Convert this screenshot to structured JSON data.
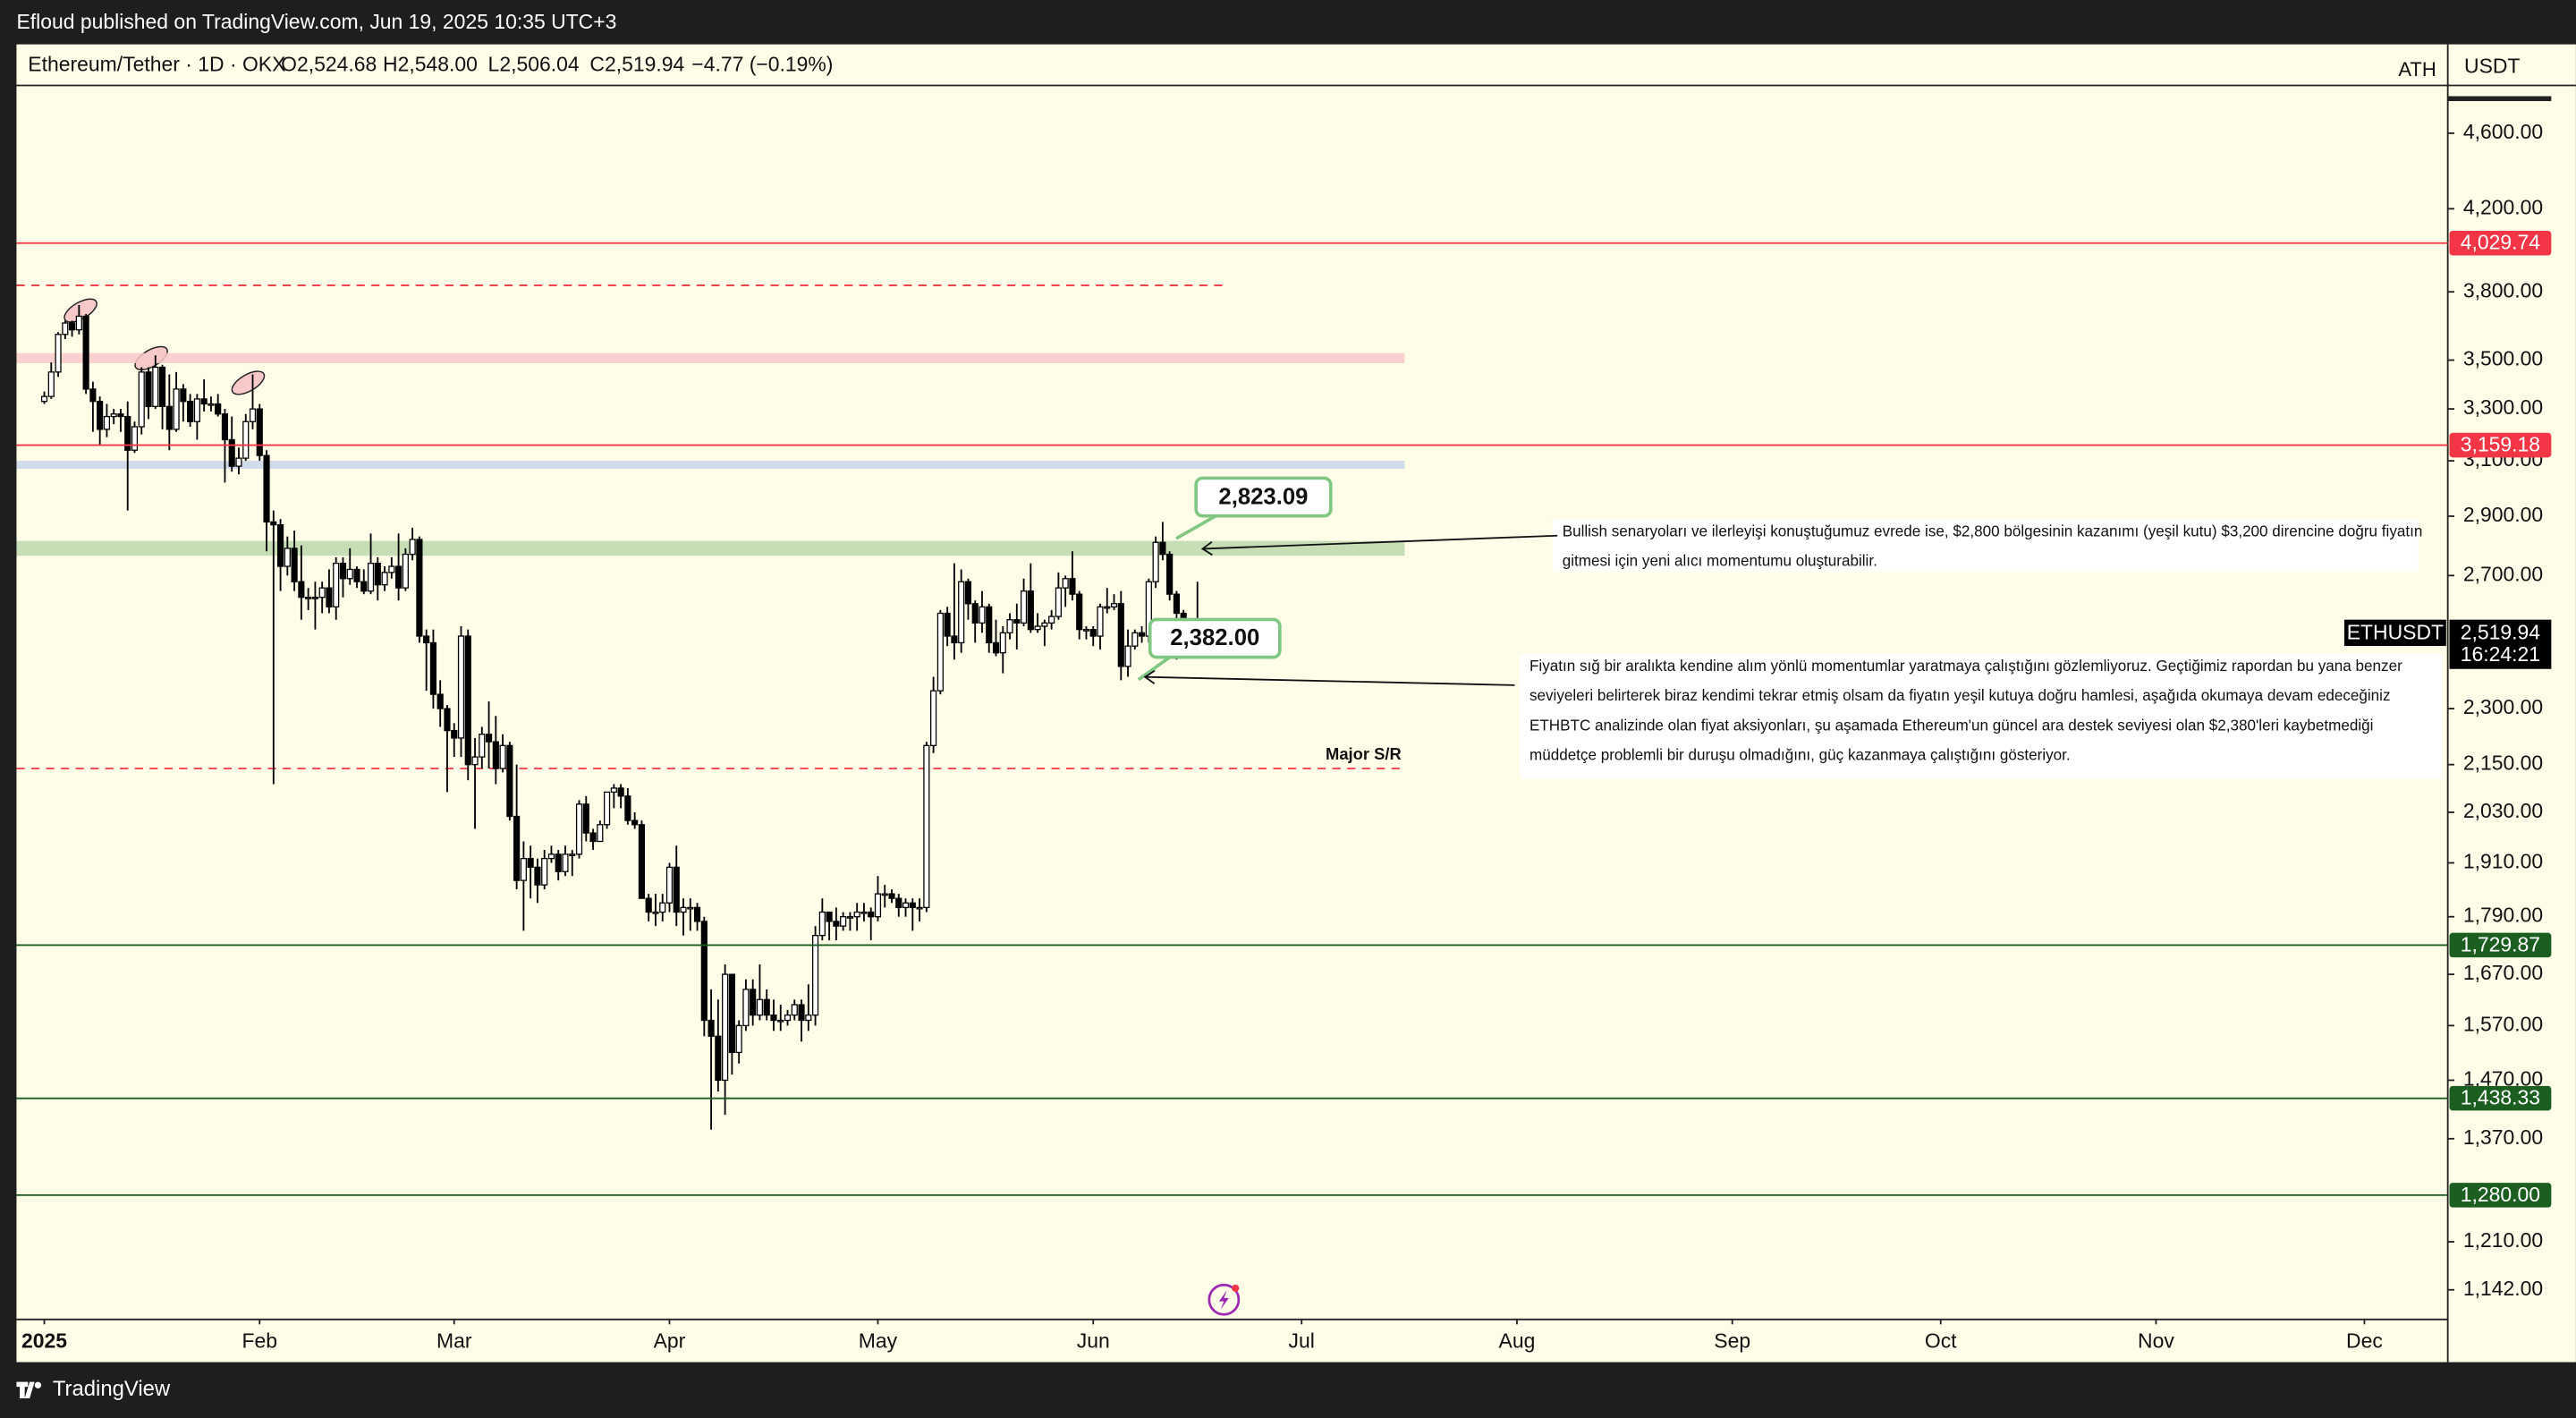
{
  "header": {
    "publisher_line": "Efloud published on TradingView.com, Jun 19, 2025 10:35 UTC+3"
  },
  "footer": {
    "brand": "TradingView"
  },
  "chart_data": {
    "type": "candlestick",
    "symbol_line": "Ethereum/Tether · 1D · OKX",
    "ohlc_labels": [
      "O2,524.68",
      "H2,548.00",
      "L2,506.04",
      "C2,519.94"
    ],
    "change_label": "−4.77 (−0.19%)",
    "ath_label": "ATH",
    "currency_label": "USDT",
    "yscale": "log",
    "ylim": [
      1102,
      4863
    ],
    "yticks": [
      {
        "value": 4600,
        "label": "4,600.00"
      },
      {
        "value": 4200,
        "label": "4,200.00"
      },
      {
        "value": 3800,
        "label": "3,800.00"
      },
      {
        "value": 3500,
        "label": "3,500.00"
      },
      {
        "value": 3300,
        "label": "3,300.00"
      },
      {
        "value": 3100,
        "label": "3,100.00"
      },
      {
        "value": 2900,
        "label": "2,900.00"
      },
      {
        "value": 2700,
        "label": "2,700.00"
      },
      {
        "value": 2300,
        "label": "2,300.00"
      },
      {
        "value": 2150,
        "label": "2,150.00"
      },
      {
        "value": 2030,
        "label": "2,030.00"
      },
      {
        "value": 1910,
        "label": "1,910.00"
      },
      {
        "value": 1790,
        "label": "1,790.00"
      },
      {
        "value": 1670,
        "label": "1,670.00"
      },
      {
        "value": 1570,
        "label": "1,570.00"
      },
      {
        "value": 1470,
        "label": "1,470.00"
      },
      {
        "value": 1370,
        "label": "1,370.00"
      },
      {
        "value": 1210,
        "label": "1,210.00"
      },
      {
        "value": 1142,
        "label": "1,142.00"
      }
    ],
    "xlim": [
      -4,
      346
    ],
    "xticks": [
      {
        "value": 0,
        "label": "2025"
      },
      {
        "value": 31,
        "label": "Feb"
      },
      {
        "value": 59,
        "label": "Mar"
      },
      {
        "value": 90,
        "label": "Apr"
      },
      {
        "value": 120,
        "label": "May"
      },
      {
        "value": 151,
        "label": "Jun"
      },
      {
        "value": 181,
        "label": "Jul"
      },
      {
        "value": 212,
        "label": "Aug"
      },
      {
        "value": 243,
        "label": "Sep"
      },
      {
        "value": 273,
        "label": "Oct"
      },
      {
        "value": 304,
        "label": "Nov"
      },
      {
        "value": 334,
        "label": "Dec"
      }
    ],
    "up_color": "#ffffff",
    "down_color": "#000000",
    "candles": [
      [
        3330,
        3370,
        3320,
        3350
      ],
      [
        3350,
        3490,
        3340,
        3450
      ],
      [
        3450,
        3620,
        3430,
        3610
      ],
      [
        3610,
        3670,
        3590,
        3660
      ],
      [
        3660,
        3670,
        3600,
        3630
      ],
      [
        3630,
        3740,
        3610,
        3690
      ],
      [
        3690,
        3700,
        3360,
        3380
      ],
      [
        3380,
        3410,
        3210,
        3330
      ],
      [
        3330,
        3350,
        3160,
        3220
      ],
      [
        3220,
        3320,
        3190,
        3270
      ],
      [
        3270,
        3300,
        3240,
        3280
      ],
      [
        3280,
        3300,
        3210,
        3270
      ],
      [
        3270,
        3330,
        2920,
        3140
      ],
      [
        3140,
        3250,
        3130,
        3230
      ],
      [
        3230,
        3470,
        3200,
        3450
      ],
      [
        3450,
        3470,
        3260,
        3310
      ],
      [
        3310,
        3520,
        3300,
        3470
      ],
      [
        3470,
        3480,
        3220,
        3310
      ],
      [
        3310,
        3440,
        3140,
        3220
      ],
      [
        3220,
        3450,
        3210,
        3380
      ],
      [
        3380,
        3400,
        3250,
        3330
      ],
      [
        3330,
        3360,
        3230,
        3250
      ],
      [
        3250,
        3360,
        3180,
        3340
      ],
      [
        3340,
        3420,
        3290,
        3320
      ],
      [
        3320,
        3350,
        3290,
        3320
      ],
      [
        3320,
        3360,
        3270,
        3280
      ],
      [
        3280,
        3300,
        3020,
        3180
      ],
      [
        3180,
        3270,
        3060,
        3080
      ],
      [
        3080,
        3150,
        3050,
        3110
      ],
      [
        3110,
        3280,
        3100,
        3250
      ],
      [
        3250,
        3440,
        3220,
        3300
      ],
      [
        3300,
        3320,
        3100,
        3120
      ],
      [
        3120,
        3140,
        2780,
        2880
      ],
      [
        2880,
        2920,
        2100,
        2870
      ],
      [
        2870,
        2890,
        2650,
        2730
      ],
      [
        2730,
        2830,
        2700,
        2790
      ],
      [
        2790,
        2850,
        2650,
        2680
      ],
      [
        2680,
        2800,
        2560,
        2630
      ],
      [
        2630,
        2660,
        2590,
        2630
      ],
      [
        2630,
        2680,
        2530,
        2630
      ],
      [
        2630,
        2680,
        2580,
        2660
      ],
      [
        2660,
        2720,
        2580,
        2600
      ],
      [
        2600,
        2760,
        2560,
        2740
      ],
      [
        2740,
        2760,
        2630,
        2690
      ],
      [
        2690,
        2790,
        2670,
        2720
      ],
      [
        2720,
        2730,
        2660,
        2680
      ],
      [
        2680,
        2720,
        2640,
        2650
      ],
      [
        2650,
        2840,
        2640,
        2740
      ],
      [
        2740,
        2760,
        2620,
        2670
      ],
      [
        2670,
        2730,
        2650,
        2710
      ],
      [
        2710,
        2760,
        2690,
        2730
      ],
      [
        2730,
        2840,
        2620,
        2660
      ],
      [
        2660,
        2790,
        2650,
        2770
      ],
      [
        2770,
        2860,
        2750,
        2820
      ],
      [
        2820,
        2830,
        2490,
        2510
      ],
      [
        2510,
        2530,
        2350,
        2490
      ],
      [
        2490,
        2530,
        2300,
        2340
      ],
      [
        2340,
        2380,
        2250,
        2300
      ],
      [
        2300,
        2310,
        2080,
        2240
      ],
      [
        2240,
        2260,
        2170,
        2220
      ],
      [
        2220,
        2540,
        2170,
        2510
      ],
      [
        2510,
        2530,
        2110,
        2150
      ],
      [
        2150,
        2220,
        1990,
        2170
      ],
      [
        2170,
        2250,
        2140,
        2230
      ],
      [
        2230,
        2320,
        2140,
        2210
      ],
      [
        2210,
        2280,
        2100,
        2140
      ],
      [
        2140,
        2230,
        2130,
        2200
      ],
      [
        2200,
        2210,
        2010,
        2020
      ],
      [
        2020,
        2150,
        1850,
        1870
      ],
      [
        1870,
        1960,
        1760,
        1920
      ],
      [
        1920,
        1950,
        1830,
        1900
      ],
      [
        1900,
        1920,
        1820,
        1860
      ],
      [
        1860,
        1940,
        1850,
        1920
      ],
      [
        1920,
        1950,
        1910,
        1930
      ],
      [
        1930,
        1940,
        1870,
        1890
      ],
      [
        1890,
        1950,
        1880,
        1930
      ],
      [
        1930,
        1940,
        1880,
        1930
      ],
      [
        1930,
        2060,
        1920,
        2050
      ],
      [
        2050,
        2070,
        1960,
        1980
      ],
      [
        1980,
        1990,
        1940,
        1960
      ],
      [
        1960,
        2010,
        1960,
        2000
      ],
      [
        2000,
        2080,
        1990,
        2080
      ],
      [
        2080,
        2100,
        2040,
        2090
      ],
      [
        2090,
        2100,
        2040,
        2070
      ],
      [
        2070,
        2090,
        2000,
        2010
      ],
      [
        2010,
        2030,
        1990,
        2000
      ],
      [
        2000,
        2010,
        1830,
        1830
      ],
      [
        1830,
        1840,
        1780,
        1800
      ],
      [
        1800,
        1840,
        1770,
        1800
      ],
      [
        1800,
        1840,
        1780,
        1820
      ],
      [
        1820,
        1910,
        1800,
        1900
      ],
      [
        1900,
        1950,
        1770,
        1800
      ],
      [
        1800,
        1830,
        1750,
        1810
      ],
      [
        1810,
        1830,
        1760,
        1810
      ],
      [
        1810,
        1820,
        1760,
        1780
      ],
      [
        1780,
        1790,
        1550,
        1580
      ],
      [
        1580,
        1640,
        1385,
        1550
      ],
      [
        1550,
        1620,
        1450,
        1470
      ],
      [
        1470,
        1690,
        1410,
        1670
      ],
      [
        1670,
        1670,
        1480,
        1520
      ],
      [
        1520,
        1580,
        1500,
        1570
      ],
      [
        1570,
        1660,
        1560,
        1640
      ],
      [
        1640,
        1660,
        1570,
        1590
      ],
      [
        1590,
        1690,
        1580,
        1620
      ],
      [
        1620,
        1640,
        1580,
        1590
      ],
      [
        1590,
        1620,
        1560,
        1580
      ],
      [
        1580,
        1610,
        1560,
        1580
      ],
      [
        1580,
        1600,
        1570,
        1590
      ],
      [
        1590,
        1620,
        1580,
        1610
      ],
      [
        1610,
        1620,
        1540,
        1580
      ],
      [
        1580,
        1650,
        1560,
        1590
      ],
      [
        1590,
        1770,
        1570,
        1750
      ],
      [
        1750,
        1830,
        1740,
        1800
      ],
      [
        1800,
        1800,
        1740,
        1780
      ],
      [
        1780,
        1810,
        1740,
        1770
      ],
      [
        1770,
        1800,
        1760,
        1790
      ],
      [
        1790,
        1800,
        1760,
        1790
      ],
      [
        1790,
        1820,
        1760,
        1800
      ],
      [
        1800,
        1820,
        1780,
        1800
      ],
      [
        1800,
        1810,
        1740,
        1790
      ],
      [
        1790,
        1880,
        1780,
        1840
      ],
      [
        1840,
        1860,
        1810,
        1840
      ],
      [
        1840,
        1850,
        1820,
        1830
      ],
      [
        1830,
        1840,
        1790,
        1810
      ],
      [
        1810,
        1830,
        1790,
        1820
      ],
      [
        1820,
        1830,
        1760,
        1810
      ],
      [
        1810,
        1830,
        1780,
        1810
      ],
      [
        1810,
        2210,
        1800,
        2200
      ],
      [
        2200,
        2390,
        2180,
        2350
      ],
      [
        2350,
        2590,
        2340,
        2580
      ],
      [
        2580,
        2600,
        2480,
        2510
      ],
      [
        2510,
        2740,
        2440,
        2490
      ],
      [
        2490,
        2720,
        2460,
        2680
      ],
      [
        2680,
        2690,
        2560,
        2610
      ],
      [
        2610,
        2620,
        2490,
        2550
      ],
      [
        2550,
        2650,
        2520,
        2600
      ],
      [
        2600,
        2610,
        2460,
        2490
      ],
      [
        2490,
        2560,
        2450,
        2460
      ],
      [
        2460,
        2540,
        2400,
        2520
      ],
      [
        2520,
        2580,
        2500,
        2560
      ],
      [
        2560,
        2610,
        2470,
        2550
      ],
      [
        2550,
        2690,
        2540,
        2650
      ],
      [
        2650,
        2740,
        2520,
        2530
      ],
      [
        2530,
        2580,
        2520,
        2540
      ],
      [
        2540,
        2560,
        2480,
        2550
      ],
      [
        2550,
        2590,
        2530,
        2570
      ],
      [
        2570,
        2710,
        2560,
        2660
      ],
      [
        2660,
        2700,
        2600,
        2690
      ],
      [
        2690,
        2780,
        2620,
        2640
      ],
      [
        2640,
        2650,
        2500,
        2530
      ],
      [
        2530,
        2540,
        2500,
        2530
      ],
      [
        2530,
        2540,
        2480,
        2510
      ],
      [
        2510,
        2610,
        2470,
        2600
      ],
      [
        2600,
        2660,
        2580,
        2600
      ],
      [
        2600,
        2640,
        2590,
        2610
      ],
      [
        2610,
        2650,
        2380,
        2420
      ],
      [
        2420,
        2530,
        2390,
        2480
      ],
      [
        2480,
        2530,
        2470,
        2520
      ],
      [
        2520,
        2540,
        2490,
        2510
      ],
      [
        2510,
        2690,
        2490,
        2680
      ],
      [
        2680,
        2830,
        2660,
        2810
      ],
      [
        2810,
        2880,
        2750,
        2770
      ],
      [
        2770,
        2780,
        2620,
        2640
      ],
      [
        2640,
        2650,
        2440,
        2580
      ],
      [
        2580,
        2590,
        2490,
        2530
      ],
      [
        2530,
        2560,
        2490,
        2550
      ],
      [
        2550,
        2680,
        2530,
        2540
      ],
      [
        2540,
        2550,
        2450,
        2510
      ],
      [
        2510,
        2540,
        2480,
        2520
      ],
      [
        2524.68,
        2548,
        2506.04,
        2519.94
      ]
    ],
    "levels": [
      {
        "value": 4029.74,
        "label": "4,029.74",
        "color": "#f23645"
      },
      {
        "value": 3159.18,
        "label": "3,159.18",
        "color": "#f23645"
      },
      {
        "value": 1729.87,
        "label": "1,729.87",
        "color": "#1b5e20"
      },
      {
        "value": 1438.33,
        "label": "1,438.33",
        "color": "#1b5e20"
      },
      {
        "value": 1280,
        "label": "1,280.00",
        "color": "#1b5e20"
      }
    ],
    "dashed_levels": [
      {
        "value": 3830,
        "color": "#f23645"
      },
      {
        "value": 2140,
        "color": "#f23645",
        "label": "Major S/R"
      }
    ],
    "zones": [
      {
        "from": 3487,
        "to": 3530,
        "color": "#f9c9c9"
      },
      {
        "from": 3070,
        "to": 3100,
        "color": "#c9d6ea"
      },
      {
        "from": 2765,
        "to": 2815,
        "color": "#bcd7ab"
      }
    ],
    "callouts": [
      {
        "value": 2823.09,
        "label": "2,823.09"
      },
      {
        "value": 2382,
        "label": "2,382.00"
      }
    ],
    "last_price": {
      "symbol": "ETHUSDT",
      "value": 2519.94,
      "label": "2,519.94",
      "countdown": "16:24:21"
    },
    "notes": [
      {
        "lines": [
          "Bullish senaryoları ve ilerleyişi konuştuğumuz evrede ise, $2,800 bölgesinin kazanımı (yeşil kutu) $3,200 direncine doğru fiyatın",
          "gitmesi için yeni alıcı momentumu oluşturabilir."
        ]
      },
      {
        "lines": [
          "Fiyatın sığ bir aralıkta kendine alım yönlü momentumlar yaratmaya çalıştığını gözlemliyoruz. Geçtiğimiz rapordan bu yana benzer",
          "seviyeleri belirterek biraz kendimi tekrar etmiş olsam da fiyatın yeşil kutuya doğru hamlesi, aşağıda okumaya devam edeceğiniz",
          "ETHBTC analizinde olan fiyat aksiyonları, şu aşamada Ethereum'un güncel ara destek seviyesi olan $2,380'leri kaybetmediği",
          "müddetçe problemli bir duruşu olmadığını, güç kazanmaya çalıştığını gösteriyor."
        ]
      }
    ]
  }
}
